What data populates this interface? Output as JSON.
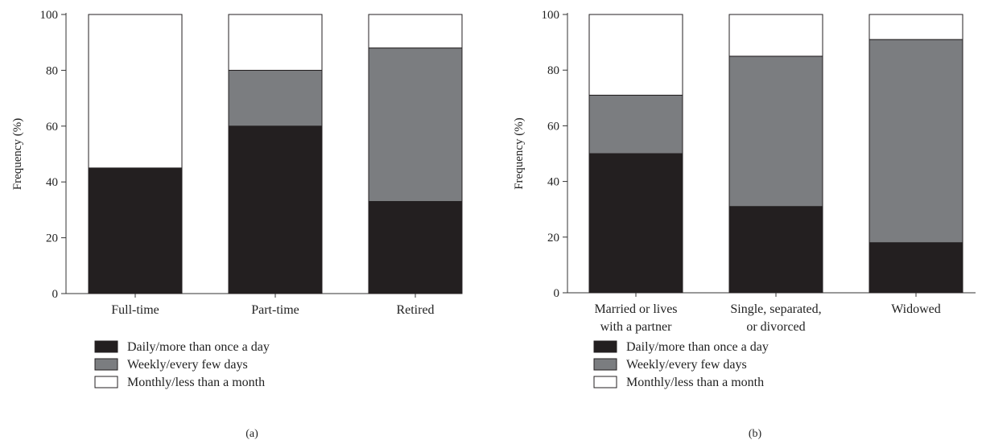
{
  "chart_data": [
    {
      "type": "bar",
      "stacked": true,
      "panel_label": "(a)",
      "categories": [
        [
          "Full-time"
        ],
        [
          "Part-time"
        ],
        [
          "Retired"
        ]
      ],
      "ylabel": "Frequency (%)",
      "ylim": [
        0,
        100
      ],
      "yticks": [
        0,
        20,
        40,
        60,
        80,
        100
      ],
      "grid": false,
      "legend_position": "bottom-left",
      "series": [
        {
          "name": "Daily/more than once a day",
          "color": "#231f20",
          "values": [
            45,
            60,
            33
          ]
        },
        {
          "name": "Weekly/every few days",
          "color": "#7b7d80",
          "values": [
            0,
            20,
            55
          ]
        },
        {
          "name": "Monthly/less than a month",
          "color": "#ffffff",
          "values": [
            55,
            20,
            12
          ]
        }
      ]
    },
    {
      "type": "bar",
      "stacked": true,
      "panel_label": "(b)",
      "categories": [
        [
          "Married or lives",
          "with a partner"
        ],
        [
          "Single, separated,",
          "or divorced"
        ],
        [
          "Widowed"
        ]
      ],
      "ylabel": "Frequency (%)",
      "ylim": [
        0,
        100
      ],
      "yticks": [
        0,
        20,
        40,
        60,
        80,
        100
      ],
      "grid": false,
      "legend_position": "bottom-left",
      "series": [
        {
          "name": "Daily/more than once a day",
          "color": "#231f20",
          "values": [
            50,
            31,
            18
          ]
        },
        {
          "name": "Weekly/every few days",
          "color": "#7b7d80",
          "values": [
            21,
            54,
            73
          ]
        },
        {
          "name": "Monthly/less than a month",
          "color": "#ffffff",
          "values": [
            29,
            15,
            9
          ]
        }
      ]
    }
  ]
}
